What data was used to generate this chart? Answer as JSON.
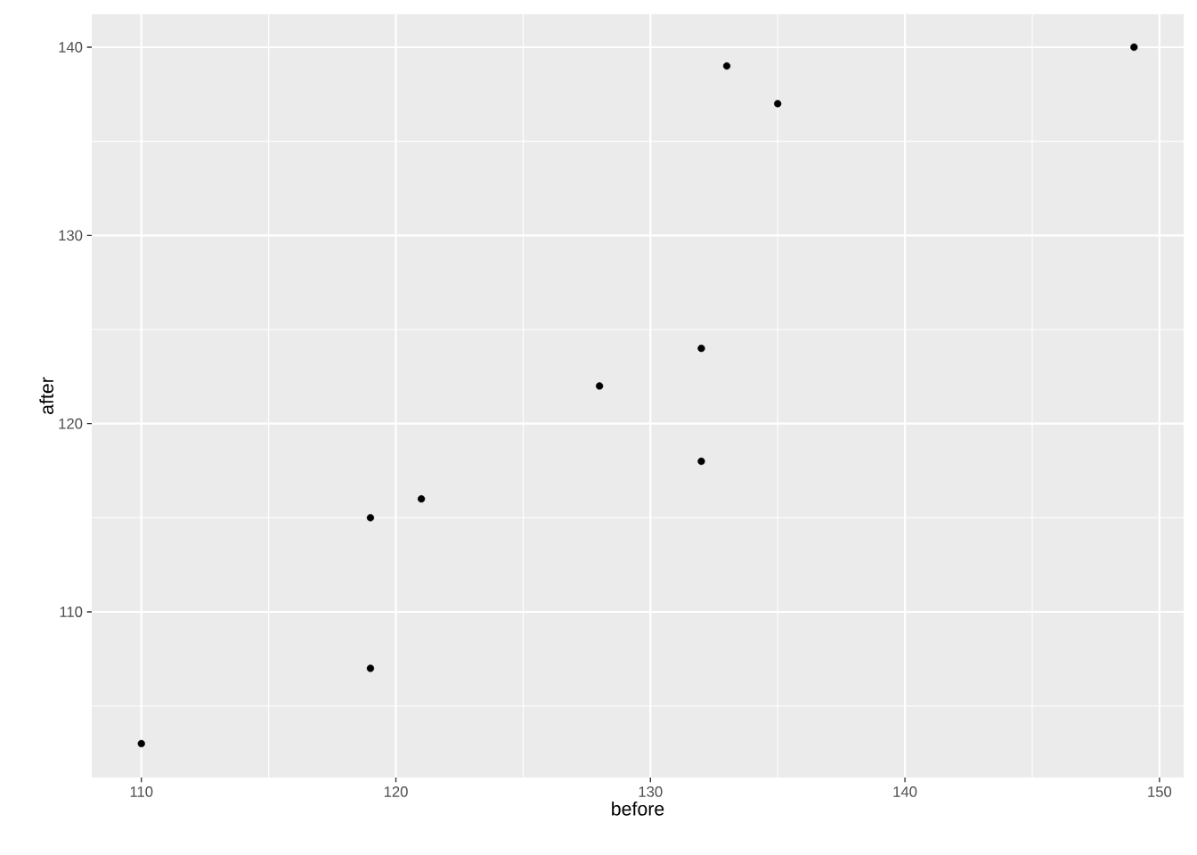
{
  "chart_data": {
    "type": "scatter",
    "xlabel": "before",
    "ylabel": "after",
    "x": [
      110,
      119,
      119,
      121,
      128,
      132,
      132,
      133,
      135,
      149
    ],
    "values": [
      103,
      107,
      115,
      116,
      122,
      124,
      118,
      139,
      137,
      140
    ],
    "color": "#000000",
    "marker": "circle",
    "grid": true,
    "xlim": [
      108.05,
      150.95
    ],
    "ylim": [
      101.2,
      141.75
    ],
    "xticks": [
      110,
      120,
      130,
      140,
      150
    ],
    "yticks": [
      110,
      120,
      130,
      140
    ]
  }
}
